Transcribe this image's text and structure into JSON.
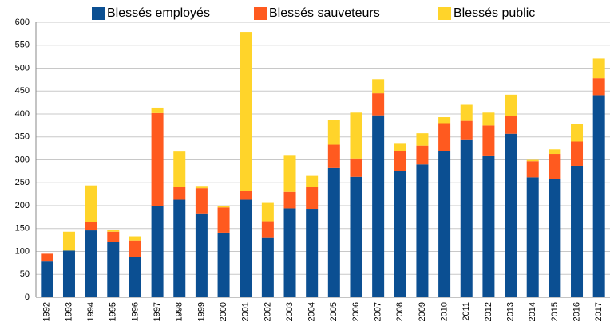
{
  "chart_data": {
    "type": "stacked-bar",
    "categories": [
      "1992",
      "1993",
      "1994",
      "1995",
      "1996",
      "1997",
      "1998",
      "1999",
      "2000",
      "2001",
      "2002",
      "2003",
      "2004",
      "2005",
      "2006",
      "2007",
      "2008",
      "2009",
      "2010",
      "2011",
      "2012",
      "2013",
      "2014",
      "2015",
      "2016",
      "2017"
    ],
    "series": [
      {
        "name": "Blessés employés",
        "color": "#0b4f92",
        "values": [
          78,
          102,
          146,
          120,
          88,
          200,
          213,
          183,
          141,
          213,
          131,
          194,
          193,
          282,
          263,
          397,
          276,
          290,
          320,
          343,
          308,
          357,
          262,
          258,
          287,
          441
        ]
      },
      {
        "name": "Blessés sauveteurs",
        "color": "#ff5a1f",
        "values": [
          17,
          0,
          19,
          23,
          36,
          202,
          28,
          55,
          55,
          20,
          35,
          36,
          47,
          51,
          40,
          48,
          44,
          41,
          60,
          42,
          67,
          39,
          35,
          55,
          53,
          37
        ]
      },
      {
        "name": "Blessés public",
        "color": "#ffd42a",
        "values": [
          0,
          41,
          79,
          4,
          9,
          12,
          77,
          5,
          4,
          346,
          40,
          79,
          25,
          54,
          100,
          31,
          15,
          27,
          13,
          35,
          28,
          46,
          3,
          10,
          38,
          43
        ]
      }
    ],
    "ylim": [
      0,
      600
    ],
    "yticks": [
      0,
      50,
      100,
      150,
      200,
      250,
      300,
      350,
      400,
      450,
      500,
      550,
      600
    ],
    "grid": true
  }
}
